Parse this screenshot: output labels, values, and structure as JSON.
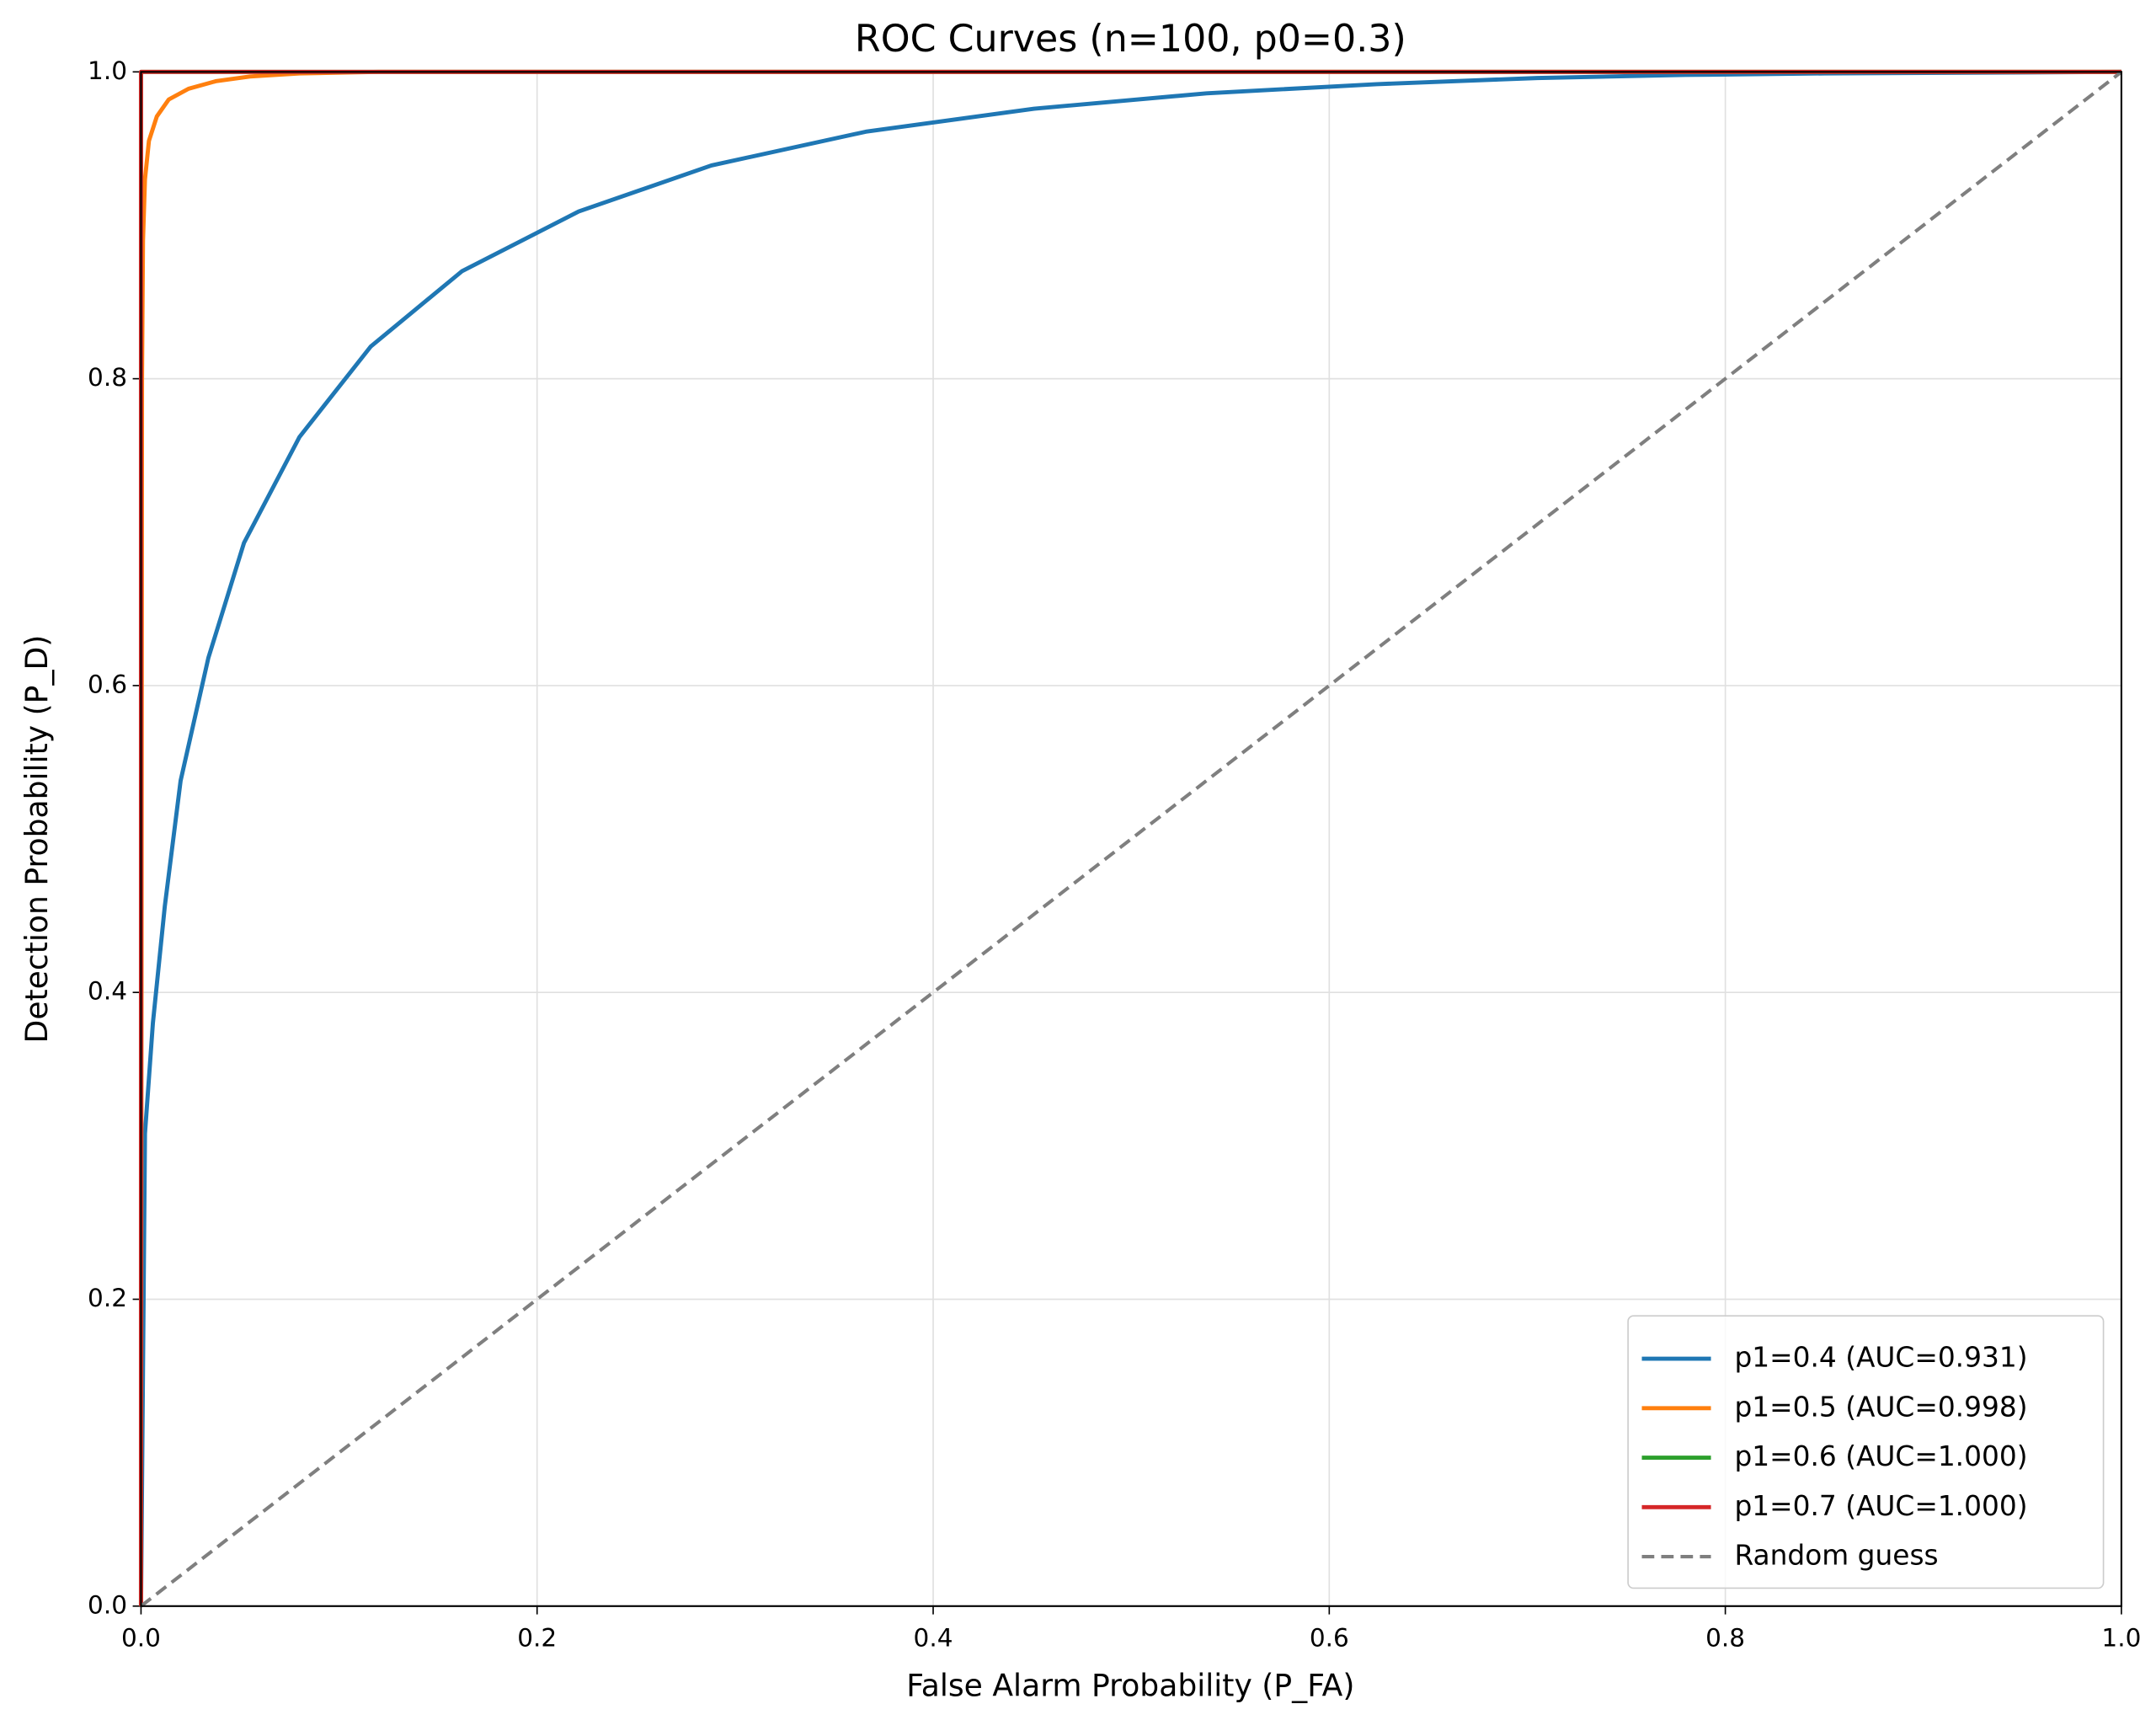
{
  "chart_data": {
    "type": "line",
    "title": "ROC Curves (n=100, p0=0.3)",
    "xlabel": "False Alarm Probability (P_FA)",
    "ylabel": "Detection Probability (P_D)",
    "xlim": [
      0,
      1
    ],
    "ylim": [
      0,
      1
    ],
    "xticks": [
      {
        "value": 0,
        "label": "0.0"
      },
      0.2,
      0.4,
      0.6,
      0.8,
      {
        "value": 1,
        "label": "1.0"
      }
    ],
    "yticks": [
      {
        "value": 0,
        "label": "0.0"
      },
      0.2,
      0.4,
      0.6,
      0.8,
      {
        "value": 1,
        "label": "1.0"
      }
    ],
    "grid": true,
    "legend": "lower right",
    "series": [
      {
        "name": "p1=0.4 (AUC=0.931)",
        "color": "#1f77b4",
        "x": [
          0,
          0.002,
          0.006,
          0.012,
          0.02,
          0.034,
          0.052,
          0.08,
          0.116,
          0.162,
          0.221,
          0.288,
          0.366,
          0.451,
          0.538,
          0.624,
          0.705,
          0.78,
          0.85,
          1
        ],
        "values": [
          0,
          0.308,
          0.38,
          0.456,
          0.538,
          0.618,
          0.693,
          0.762,
          0.821,
          0.87,
          0.909,
          0.939,
          0.961,
          0.976,
          0.986,
          0.992,
          0.996,
          0.998,
          0.999,
          1
        ]
      },
      {
        "name": "p1=0.5 (AUC=0.998)",
        "color": "#ff7f0e",
        "x": [
          0,
          0.0005,
          0.001,
          0.002,
          0.004,
          0.008,
          0.014,
          0.024,
          0.038,
          0.055,
          0.08,
          0.12,
          1
        ],
        "values": [
          0,
          0.8,
          0.89,
          0.93,
          0.955,
          0.971,
          0.982,
          0.989,
          0.994,
          0.997,
          0.999,
          1,
          1
        ]
      },
      {
        "name": "p1=0.6 (AUC=1.000)",
        "color": "#2ca02c",
        "x": [
          0,
          0,
          1
        ],
        "values": [
          0,
          1,
          1
        ]
      },
      {
        "name": "p1=0.7 (AUC=1.000)",
        "color": "#d62728",
        "x": [
          0,
          0,
          1
        ],
        "values": [
          0,
          1,
          1
        ]
      },
      {
        "name": "Random guess",
        "color": "#7f7f7f",
        "dashed": true,
        "x": [
          0,
          1
        ],
        "values": [
          0,
          1
        ]
      }
    ]
  }
}
